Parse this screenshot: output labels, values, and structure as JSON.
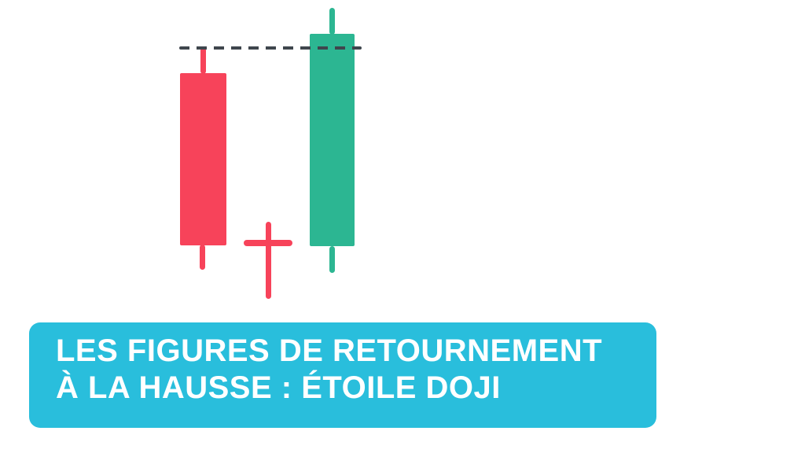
{
  "banner": {
    "title_line1": "LES FIGURES DE RETOURNEMENT",
    "title_line2": "À LA HAUSSE : ÉTOILE DOJI"
  },
  "figure": {
    "pattern_name": "Étoile Doji (Doji Star) — bullish reversal",
    "elements": [
      {
        "name": "bearish-candle",
        "type": "bearish",
        "parts": [
          "upper-wick",
          "body",
          "lower-wick"
        ]
      },
      {
        "name": "doji-star-candle",
        "type": "doji",
        "parts": [
          "vertical-line",
          "horizontal-open-close-bar"
        ]
      },
      {
        "name": "bullish-candle",
        "type": "bullish",
        "parts": [
          "upper-wick",
          "body",
          "lower-wick"
        ]
      },
      {
        "name": "gap-dashed-line",
        "type": "annotation-line",
        "style": "dashed"
      }
    ]
  },
  "colors": {
    "background": "#ffffff",
    "bearish": "#f7435a",
    "bullish": "#2cb692",
    "dashed": "#3f464d",
    "banner_bg": "#29bedc",
    "banner_text": "#ffffff"
  }
}
